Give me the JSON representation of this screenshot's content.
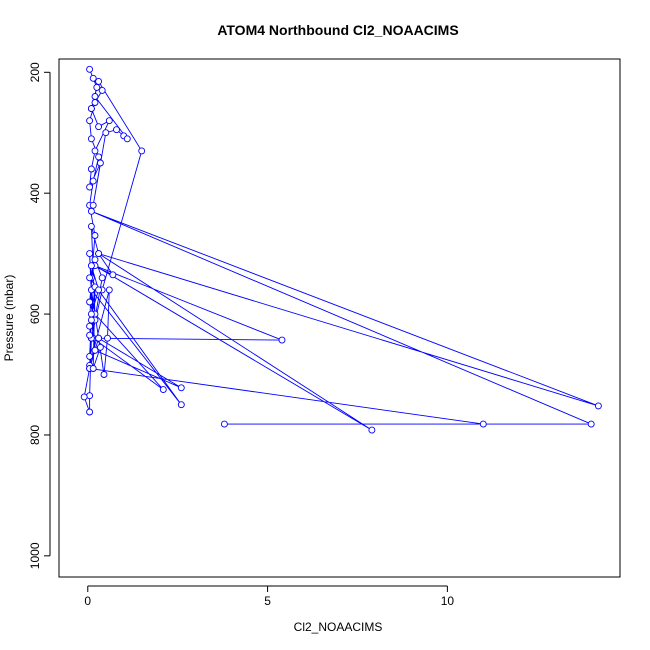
{
  "chart_data": {
    "type": "line",
    "title": "ATOM4 Northbound Cl2_NOAACIMS",
    "xlabel": "Cl2_NOAACIMS",
    "ylabel": "Pressure (mbar)",
    "xlim": [
      -0.8,
      14.8
    ],
    "ylim": [
      1035,
      178
    ],
    "y_reversed": true,
    "x_ticks": [
      0,
      5,
      10
    ],
    "y_ticks": [
      200,
      400,
      600,
      800,
      1000
    ],
    "grid": false,
    "legend": "none",
    "colors": {
      "series": "#0000ff",
      "axis": "#000000"
    },
    "series": [
      {
        "x": [
          0.05,
          0.1,
          0.2,
          0.05,
          0.15,
          0.3,
          0.1,
          0.05,
          0.2,
          0.4,
          0.15,
          0.05,
          0.25,
          0.1,
          0.3,
          0.6,
          0.2,
          0.1,
          0.05,
          0.35,
          0.15,
          0.5,
          0.8,
          1.0,
          1.1,
          0.2,
          0.1,
          0.3,
          1.5,
          0.4,
          0.1,
          0.2,
          0.05,
          0.15,
          0.7,
          0.3,
          0.1,
          0.2,
          2.1,
          0.15,
          0.05,
          0.2,
          2.6,
          0.3,
          0.1,
          2.6,
          0.05,
          0.2,
          0.4,
          0.1,
          5.4,
          0.2,
          7.9,
          0.3,
          14.2,
          0.1,
          14.0,
          3.8,
          11.0,
          0.05,
          0.3,
          0.45,
          0.55,
          0.6,
          0.05,
          0.1,
          0.05,
          0.05,
          -0.1,
          0.05,
          0.2,
          0.1,
          0.05,
          0.35,
          0.15,
          0.2,
          0.05,
          0.1,
          0.3,
          0.1
        ],
        "y": [
          620,
          540,
          470,
          420,
          380,
          340,
          310,
          280,
          250,
          230,
          210,
          195,
          225,
          260,
          290,
          280,
          330,
          360,
          390,
          350,
          420,
          300,
          295,
          305,
          310,
          240,
          260,
          215,
          330,
          560,
          640,
          610,
          580,
          520,
          535,
          500,
          455,
          600,
          725,
          640,
          500,
          660,
          722,
          640,
          560,
          750,
          540,
          510,
          540,
          640,
          643,
          520,
          792,
          500,
          752,
          430,
          782,
          782,
          782,
          690,
          640,
          700,
          640,
          560,
          685,
          640,
          735,
          762,
          737,
          690,
          660,
          610,
          670,
          655,
          690,
          555,
          635,
          600,
          560,
          520
        ]
      }
    ]
  }
}
